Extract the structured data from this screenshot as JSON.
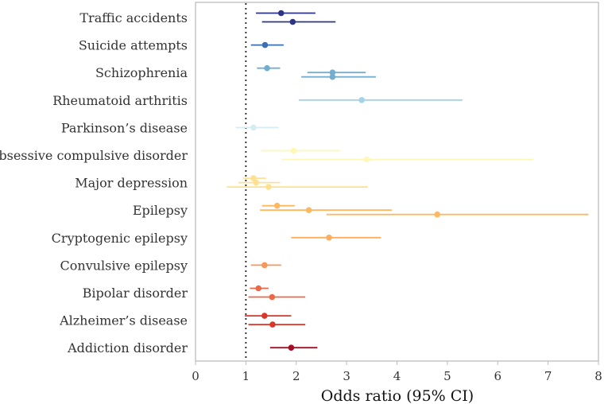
{
  "chart_data": {
    "type": "forest",
    "xlabel": "Odds ratio (95% CI)",
    "xlim": [
      0,
      8
    ],
    "xticks": [
      0,
      1,
      2,
      3,
      4,
      5,
      6,
      7,
      8
    ],
    "reference_line": 1,
    "grid": false,
    "categories": [
      "Traffic accidents",
      "Suicide attempts",
      "Schizophrenia",
      "Rheumatoid arthritis",
      "Parkinson’s disease",
      "Obsessive compulsive disorder",
      "Major depression",
      "Epilepsy",
      "Cryptogenic epilepsy",
      "Convulsive epilepsy",
      "Bipolar disorder",
      "Alzheimer’s disease",
      "Addiction disorder"
    ],
    "colors": [
      "#2c3488",
      "#3a6fb5",
      "#73adcf",
      "#a6d1e6",
      "#d6ecf5",
      "#fff7b8",
      "#fee090",
      "#fdb861",
      "#fdae5f",
      "#f7975a",
      "#ed6848",
      "#d8372a",
      "#a50f26"
    ],
    "estimates": [
      [
        {
          "or": 1.7,
          "lo": 1.2,
          "hi": 2.38
        },
        {
          "or": 1.93,
          "lo": 1.32,
          "hi": 2.78
        }
      ],
      [
        {
          "or": 1.38,
          "lo": 1.1,
          "hi": 1.75
        }
      ],
      [
        {
          "or": 1.42,
          "lo": 1.22,
          "hi": 1.68
        },
        {
          "or": 2.72,
          "lo": 2.22,
          "hi": 3.38
        },
        {
          "or": 2.72,
          "lo": 2.1,
          "hi": 3.58
        }
      ],
      [
        {
          "or": 3.3,
          "lo": 2.05,
          "hi": 5.3
        }
      ],
      [
        {
          "or": 1.15,
          "lo": 0.8,
          "hi": 1.65
        }
      ],
      [
        {
          "or": 1.95,
          "lo": 1.3,
          "hi": 2.88
        },
        {
          "or": 3.4,
          "lo": 1.72,
          "hi": 6.7
        }
      ],
      [
        {
          "or": 1.15,
          "lo": 0.95,
          "hi": 1.4
        },
        {
          "or": 1.2,
          "lo": 0.85,
          "hi": 1.68
        },
        {
          "or": 1.45,
          "lo": 0.62,
          "hi": 3.42
        }
      ],
      [
        {
          "or": 1.62,
          "lo": 1.32,
          "hi": 1.97
        },
        {
          "or": 2.25,
          "lo": 1.28,
          "hi": 3.9
        },
        {
          "or": 4.8,
          "lo": 2.6,
          "hi": 7.8
        }
      ],
      [
        {
          "or": 2.65,
          "lo": 1.9,
          "hi": 3.68
        }
      ],
      [
        {
          "or": 1.37,
          "lo": 1.1,
          "hi": 1.7
        }
      ],
      [
        {
          "or": 1.25,
          "lo": 1.08,
          "hi": 1.45
        },
        {
          "or": 1.52,
          "lo": 1.05,
          "hi": 2.18
        }
      ],
      [
        {
          "or": 1.37,
          "lo": 0.98,
          "hi": 1.9
        },
        {
          "or": 1.53,
          "lo": 1.05,
          "hi": 2.18
        }
      ],
      [
        {
          "or": 1.9,
          "lo": 1.48,
          "hi": 2.42
        }
      ]
    ]
  }
}
